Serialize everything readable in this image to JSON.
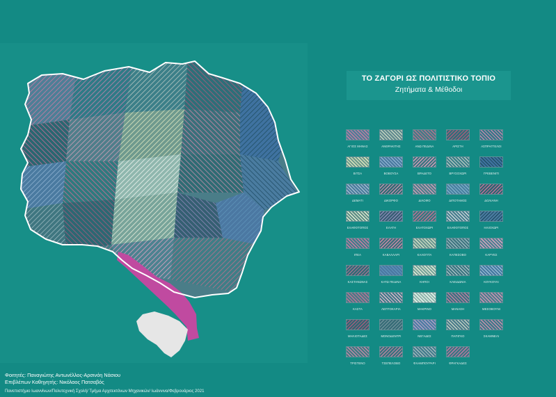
{
  "title": {
    "main": "ΤΟ ΖΑΓΟΡΙ ΩΣ ΠΟΛΙΤΙΣΤΙΚΟ ΤΟΠΙΟ",
    "subtitle": "Ζητήματα & Μέθοδοι"
  },
  "legend": [
    {
      "label": "ΑΓΙΟΣ ΜΗΝΑΣ",
      "fill": "#4d7f96",
      "line": "#c97ca4",
      "angle": 45
    },
    {
      "label": "ΑΝΘΡΑΚΙΤΗΣ",
      "fill": "#5f8a8e",
      "line": "#c8d6c4",
      "angle": 45
    },
    {
      "label": "ΑΝΩ ΠΕΔΙΝΑ",
      "fill": "#3f7e86",
      "line": "#b8708f",
      "angle": 45
    },
    {
      "label": "ΑΡΙΣΤΗ",
      "fill": "#2d6f78",
      "line": "#a95b7c",
      "angle": 135
    },
    {
      "label": "ΑΣΠΡΑΓΓΕΛΟΙ",
      "fill": "#2f7a86",
      "line": "#c285ad",
      "angle": 45
    },
    {
      "label": "ΒΙΤΣΑ",
      "fill": "#6f9a8e",
      "line": "#e2e9c0",
      "angle": 45
    },
    {
      "label": "ΒΟΒΟΥΣΑ",
      "fill": "#4a7aa0",
      "line": "#8fb3d2",
      "angle": 45
    },
    {
      "label": "ΒΡΑΔΕΤΟ",
      "fill": "#3b7480",
      "line": "#d6a0b8",
      "angle": 135
    },
    {
      "label": "ΒΡΥΣΟΧΩΡΙ",
      "fill": "#3c7f88",
      "line": "#b7c8c3",
      "angle": 45
    },
    {
      "label": "ΓΡΕΒΕΝΙΤΙ",
      "fill": "#3f72a0",
      "line": "#1f4f63",
      "angle": 45
    },
    {
      "label": "ΔΕΜΑΤΙ",
      "fill": "#4a7c9c",
      "line": "#a3bdd0",
      "angle": 45
    },
    {
      "label": "ΔΙΚΟΡΦΟ",
      "fill": "#2f6b73",
      "line": "#c190ac",
      "angle": 135
    },
    {
      "label": "ΔΙΛΟΦΟ",
      "fill": "#4f7e8a",
      "line": "#d0a0b8",
      "angle": 45
    },
    {
      "label": "ΔΙΠΟΤΑΜΟΣ",
      "fill": "#4880a0",
      "line": "#7fb0c8",
      "angle": 45
    },
    {
      "label": "ΔΟΛΙΑΝΗ",
      "fill": "#2a6670",
      "line": "#c46f98",
      "angle": 135
    },
    {
      "label": "ΕΛΑΦΟΤΟΠΟΣ",
      "fill": "#5e8e86",
      "line": "#e6efd8",
      "angle": 45
    },
    {
      "label": "ΕΛΑΤΗ",
      "fill": "#355f72",
      "line": "#8c88b8",
      "angle": 135
    },
    {
      "label": "ΕΛΑΤΟΧΩΡΙ",
      "fill": "#2f7a7e",
      "line": "#c96f96",
      "angle": 135
    },
    {
      "label": "ΕΛΑΦΟΤΟΠΟΣ",
      "fill": "#477f8e",
      "line": "#cfd8dc",
      "angle": 45
    },
    {
      "label": "ΗΛΙΟΧΩΡΙ",
      "fill": "#4a7ca0",
      "line": "#204d66",
      "angle": 135
    },
    {
      "label": "ΙΠΕΑ",
      "fill": "#3f7f8a",
      "line": "#d27aa3",
      "angle": 45
    },
    {
      "label": "ΚΑΒΑΛΛΑΡΙ",
      "fill": "#3a6f7a",
      "line": "#d08aa9",
      "angle": 135
    },
    {
      "label": "ΚΑΛΟΓΙΤΑ",
      "fill": "#6a9690",
      "line": "#d6e2c9",
      "angle": 45
    },
    {
      "label": "ΚΑΠΕΣΟΒΟ",
      "fill": "#3f7680",
      "line": "#9cb9c0",
      "angle": 45
    },
    {
      "label": "ΚΑΡΥΕΣ",
      "fill": "#4c8290",
      "line": "#e1a4c3",
      "angle": 45
    },
    {
      "label": "ΚΑΣΤΑΝΩΝΑΣ",
      "fill": "#2e6a76",
      "line": "#a2748f",
      "angle": 135
    },
    {
      "label": "ΚΑΤΩ ΠΕΔΙΝΑ",
      "fill": "#4b78a2",
      "line": "#5e93b9",
      "angle": 45
    },
    {
      "label": "ΚΗΠΟΙ",
      "fill": "#78a49a",
      "line": "#e8eedc",
      "angle": 45
    },
    {
      "label": "ΚΛΕΙΔΩΝΙΑ",
      "fill": "#3b7480",
      "line": "#a9c3c6",
      "angle": 45
    },
    {
      "label": "ΚΟΥΚΟΥΛΙ",
      "fill": "#4579a0",
      "line": "#9abed6",
      "angle": 45
    },
    {
      "label": "ΚΑΣΤΑ",
      "fill": "#477c86",
      "line": "#c27298",
      "angle": 45
    },
    {
      "label": "ΛΕΠΤΟΚΑΡΙΑ",
      "fill": "#3e7b88",
      "line": "#e0b8cb",
      "angle": 45
    },
    {
      "label": "ΜΑΚΡΙΝΟ",
      "fill": "#8fb7ae",
      "line": "#f1f5ef",
      "angle": 45
    },
    {
      "label": "ΜΑΝΑΣΗ",
      "fill": "#3a7380",
      "line": "#c57fa3",
      "angle": 45
    },
    {
      "label": "ΜΕΣΟΒΟΥΝΙ",
      "fill": "#4a7f8c",
      "line": "#d693b4",
      "angle": 45
    },
    {
      "label": "ΜΗΛΙΟΤΑΔΕΣ",
      "fill": "#2c6872",
      "line": "#a55b7e",
      "angle": 135
    },
    {
      "label": "ΜΟΝΟΔΕΝΤΡΙ",
      "fill": "#356b76",
      "line": "#70929b",
      "angle": 135
    },
    {
      "label": "ΝΕΓΑΔΕΣ",
      "fill": "#4b7da2",
      "line": "#b5a0c6",
      "angle": 45
    },
    {
      "label": "ΠΑΠΙΓΚΟ",
      "fill": "#4a7c8a",
      "line": "#c6d2c6",
      "angle": 45
    },
    {
      "label": "ΣΚΑΜΝΕΛΙ",
      "fill": "#3a7a88",
      "line": "#cd8fae",
      "angle": 45
    },
    {
      "label": "ΤΡΙΣΤΕΝΟ",
      "fill": "#3f7a82",
      "line": "#c48aa8",
      "angle": 45
    },
    {
      "label": "ΤΣΕΠΕΛΟΒΟ",
      "fill": "#35707c",
      "line": "#b9869f",
      "angle": 135
    },
    {
      "label": "ΦΛΑΜΠΟΥΡΑΡΙ",
      "fill": "#437c8c",
      "line": "#a9bcc0",
      "angle": 45
    },
    {
      "label": "ΦΡΑΓΚΑΔΕΣ",
      "fill": "#3a7582",
      "line": "#c17aa1",
      "angle": 135
    }
  ],
  "credits": {
    "students": "Φοιτητές: Παναγιώτης Αντωνέλλος-Αρσινόη Νάσιου",
    "supervisor": "Επιβλέπων Καθηγητής: Νικόλαος Πατσαβός"
  },
  "footer": "Πανεπιστήμιο Ιωαννίνων/Πολυτεχνική Σχολή/ Τμήμα Αρχιτεκτόνων Μηχανικών/ Ιωάννινα/Φεβρουάριος 2021",
  "colors": {
    "background": "#138a84",
    "panel": "#178f88",
    "outline": "#ffffff",
    "highlight": "#c04aa0",
    "lake": "#e6e6e6"
  }
}
